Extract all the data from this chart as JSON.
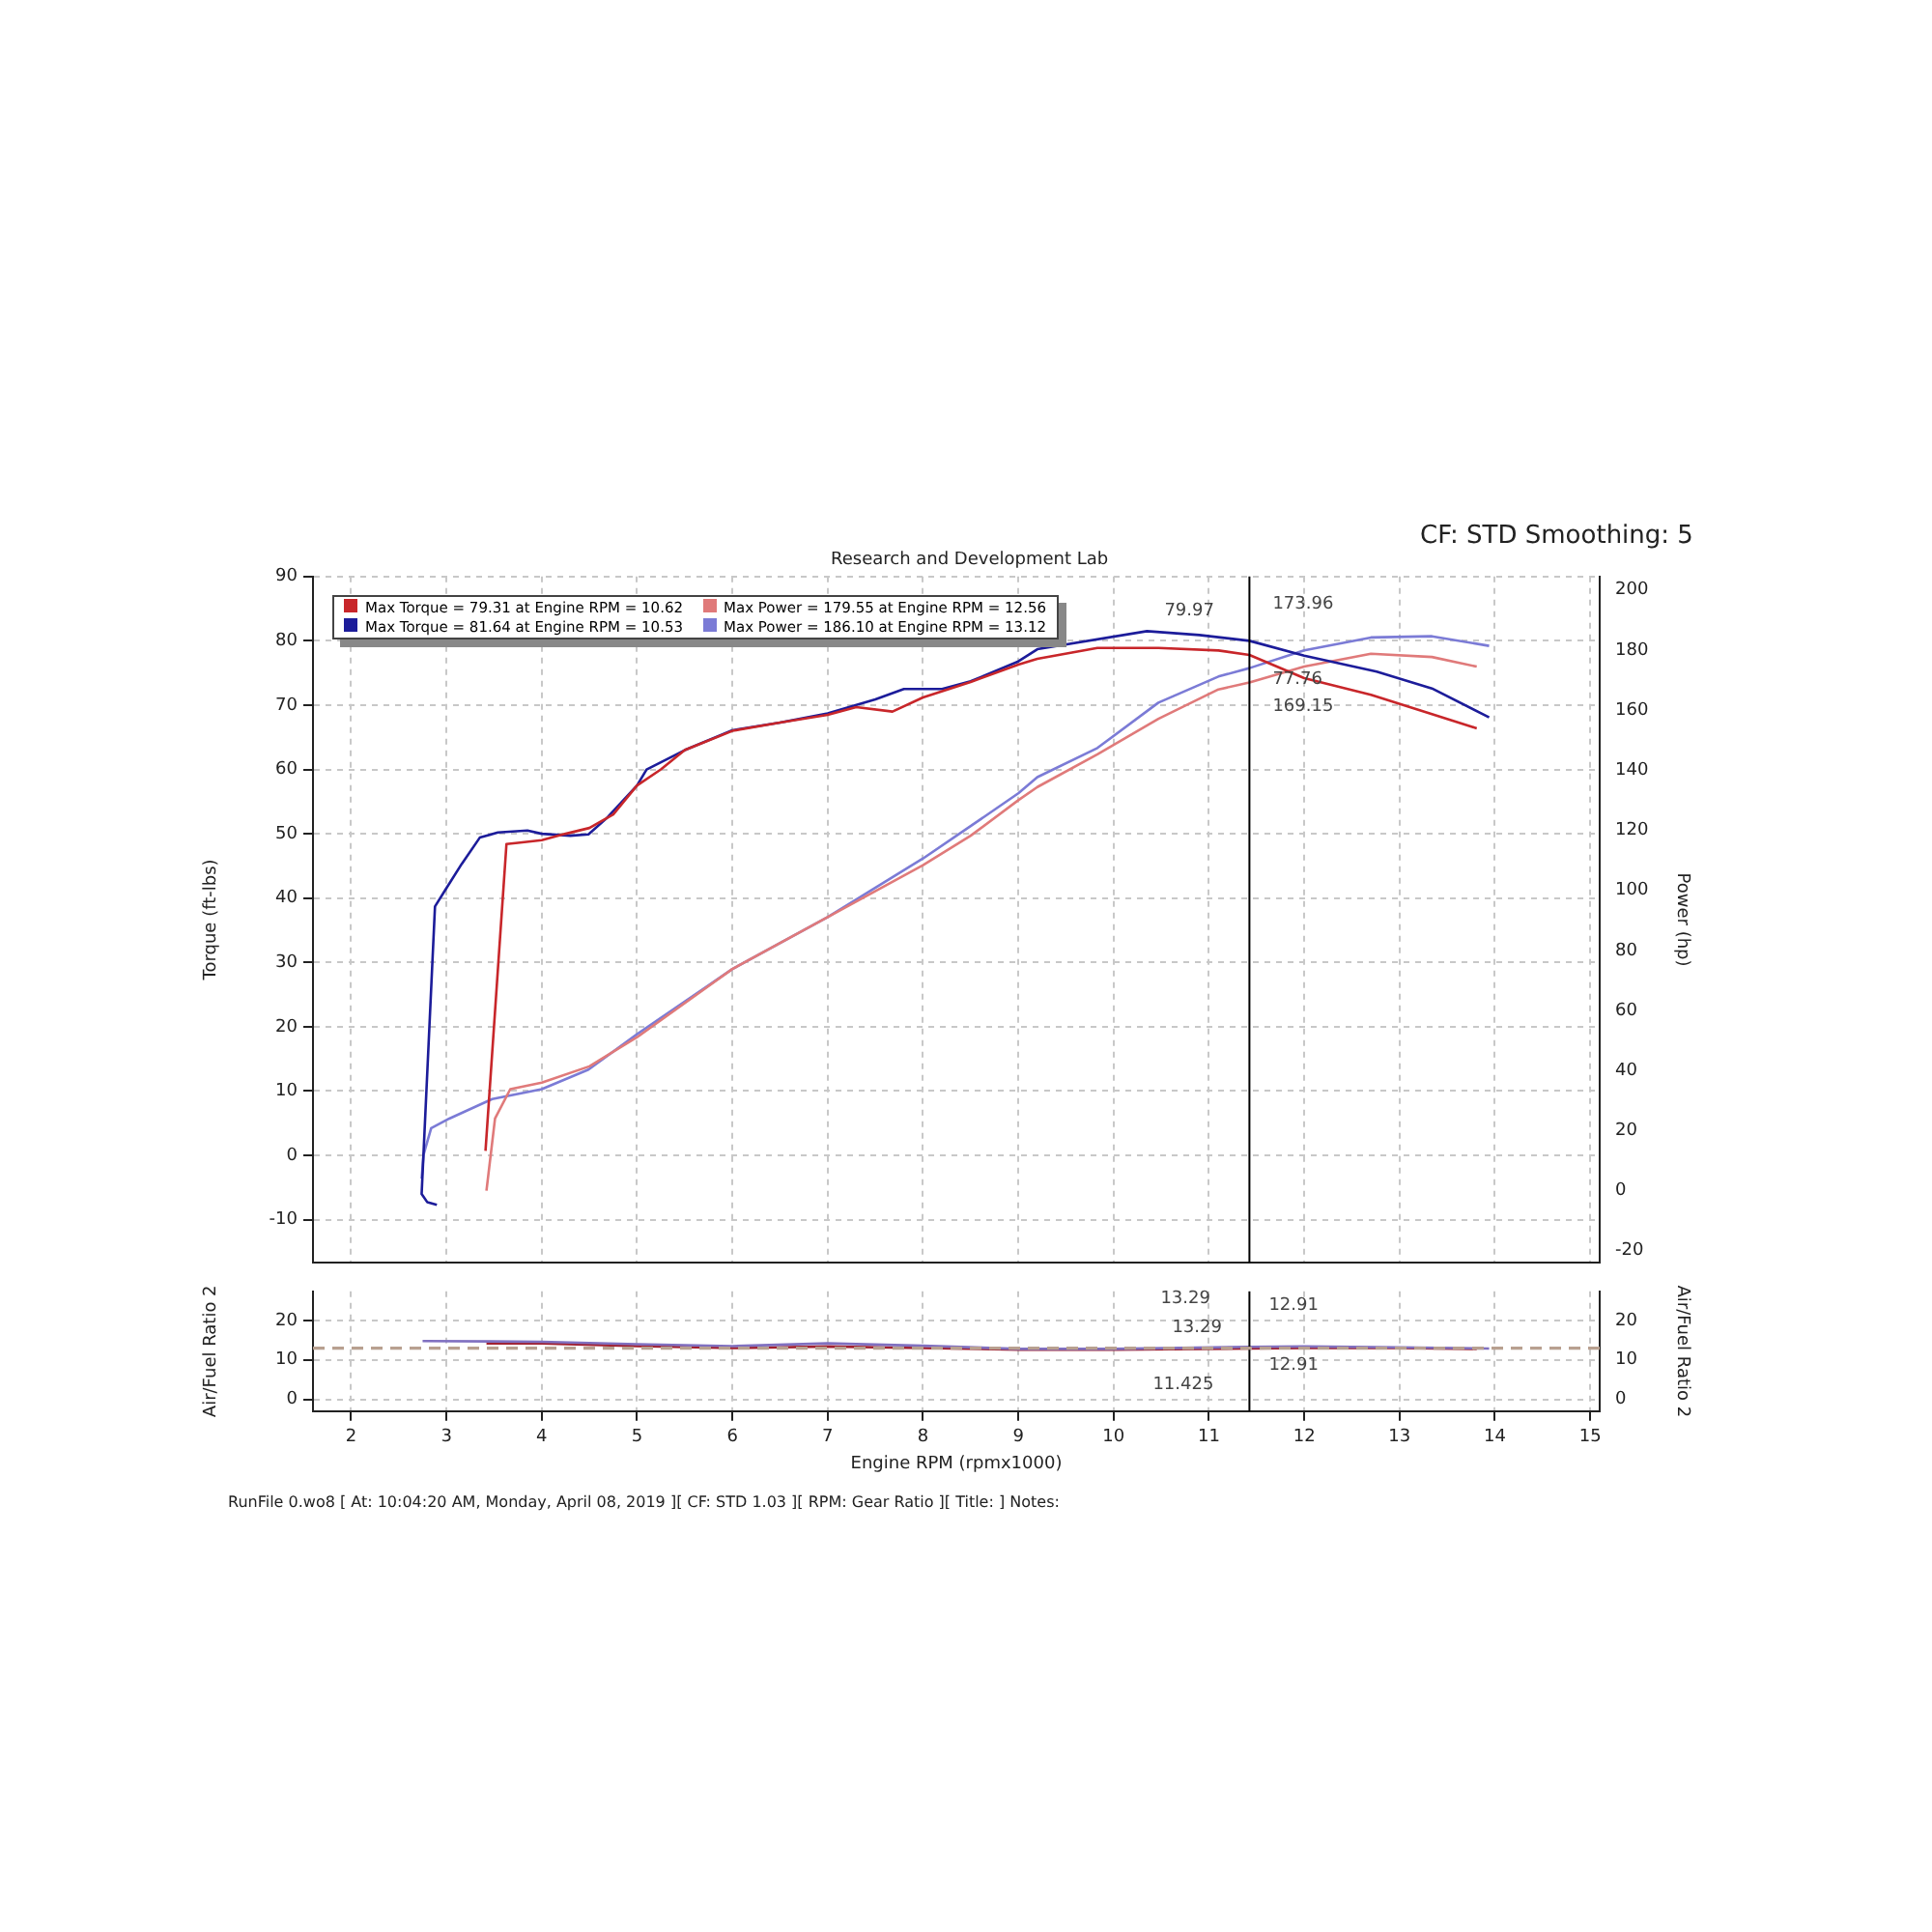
{
  "chart_data": [
    {
      "type": "line",
      "title": "Research and Development Lab",
      "subtitle": "CF: STD Smoothing: 5",
      "ylabel": "Torque (ft-lbs)",
      "y2label": "Power (hp)",
      "xlim": [
        1.6,
        15.1
      ],
      "xticks": [
        2,
        3,
        4,
        5,
        6,
        7,
        8,
        9,
        10,
        11,
        12,
        13,
        14,
        15
      ],
      "ylim": [
        -16.7,
        90
      ],
      "yticks": [
        -10,
        0,
        10,
        20,
        30,
        40,
        50,
        60,
        70,
        80,
        90
      ],
      "y2lim": [
        -24,
        204.5
      ],
      "y2ticks": [
        -20,
        0,
        20,
        40,
        60,
        80,
        100,
        120,
        140,
        160,
        180,
        200
      ],
      "tick_labels": "y",
      "grid": true,
      "legend": "top left",
      "marker": "none",
      "line_style": "solid",
      "series": [
        {
          "name": "Max Torque = 79.31 at Engine RPM = 10.62",
          "color": "#c8262a",
          "x": [
            3.41,
            3.63,
            3.75,
            4.0,
            4.25,
            4.5,
            4.75,
            5.0,
            5.25,
            5.5,
            6.0,
            6.5,
            7.0,
            7.3,
            7.68,
            8.0,
            8.5,
            9.0,
            9.2,
            9.83,
            10.47,
            11.1,
            11.425,
            12.0,
            12.7,
            13.34,
            13.81
          ],
          "values": [
            0.7,
            48.4,
            48.6,
            49,
            50,
            50.9,
            53,
            57.5,
            60,
            63,
            66,
            67.3,
            68.5,
            69.7,
            69,
            71.2,
            73.6,
            76.3,
            77.2,
            78.9,
            78.9,
            78.5,
            77.8,
            74.2,
            71.6,
            68.6,
            66.4
          ]
        },
        {
          "name": "Max Torque = 81.64 at Engine RPM = 10.53",
          "color": "#1c1c9a",
          "x": [
            2.9,
            2.8,
            2.74,
            2.88,
            2.99,
            3.16,
            3.35,
            3.54,
            3.85,
            4.0,
            4.3,
            4.49,
            4.68,
            5.0,
            5.1,
            5.5,
            6.0,
            6.5,
            7.0,
            7.5,
            7.8,
            8.2,
            8.5,
            9.0,
            9.2,
            10.35,
            10.9,
            11.425,
            12.0,
            12.76,
            13.34,
            13.94
          ],
          "values": [
            -7.7,
            -7.3,
            -6,
            38.7,
            41.3,
            45.3,
            49.4,
            50.2,
            50.5,
            50,
            49.7,
            49.9,
            52.4,
            57.5,
            60,
            63,
            66.1,
            67.3,
            68.7,
            70.9,
            72.5,
            72.5,
            73.7,
            76.8,
            78.7,
            81.5,
            80.9,
            80.0,
            77.7,
            75.2,
            72.6,
            68.1
          ]
        },
        {
          "name": "Max Power = 179.55 at Engine RPM = 12.56",
          "color": "#e07a7a",
          "axis": "y2",
          "x": [
            3.42,
            3.51,
            3.67,
            4.0,
            4.5,
            5.0,
            6.0,
            7.0,
            8.0,
            8.5,
            9.0,
            9.2,
            9.83,
            10.47,
            11.1,
            11.425,
            12.0,
            12.7,
            13.34,
            13.81
          ],
          "values": [
            0,
            24,
            33.8,
            36,
            41.4,
            51.1,
            73.8,
            91.1,
            108.4,
            118.2,
            130,
            134.4,
            145.3,
            157.1,
            166.9,
            169.2,
            174.5,
            178.8,
            177.7,
            174.5
          ]
        },
        {
          "name": "Max Power = 186.10 at Engine RPM = 13.12",
          "color": "#7b7bd6",
          "axis": "y2",
          "x": [
            2.74,
            2.76,
            2.84,
            3.03,
            3.48,
            4.0,
            4.49,
            5.0,
            6.0,
            7.0,
            8.0,
            8.5,
            9.0,
            9.2,
            9.83,
            10.47,
            11.1,
            11.425,
            12.0,
            12.7,
            13.34,
            13.94
          ],
          "values": [
            4,
            12,
            20.8,
            24,
            30.5,
            33.8,
            40.3,
            52.1,
            73.8,
            91.1,
            110.6,
            121.4,
            132.3,
            137.7,
            147.4,
            162.5,
            171.2,
            174,
            179.9,
            184.2,
            184.6,
            181.4
          ]
        }
      ],
      "ref_lines": [
        {
          "axis": "x",
          "value": 11.425,
          "color": "#000000"
        }
      ],
      "annotations": [
        "79.97",
        "77.76",
        "173.96",
        "169.15"
      ]
    },
    {
      "type": "line",
      "xlabel": "Engine RPM (rpmx1000)",
      "ylabel": "Air/Fuel Ratio 2",
      "y2label": "Air/Fuel Ratio 2",
      "xlim": [
        1.6,
        15.1
      ],
      "xticks": [
        2,
        3,
        4,
        5,
        6,
        7,
        8,
        9,
        10,
        11,
        12,
        13,
        14,
        15
      ],
      "ylim": [
        -3,
        27.4
      ],
      "yticks": [
        0,
        10,
        20
      ],
      "y2lim": [
        -3,
        27.4
      ],
      "y2ticks": [
        0,
        10,
        20
      ],
      "grid": true,
      "marker": "none",
      "line_style": "solid",
      "series": [
        {
          "color": "#8070c0",
          "x": [
            2.75,
            4,
            5,
            6,
            7,
            8,
            9,
            10,
            11.425,
            12,
            13,
            13.94
          ],
          "values": [
            14.8,
            14.6,
            14,
            13.5,
            14.2,
            13.6,
            12.8,
            12.8,
            13.3,
            13.4,
            13.2,
            12.9
          ]
        },
        {
          "color": "#a02030",
          "x": [
            3.42,
            4,
            5,
            6,
            7,
            8,
            9,
            10,
            11.425,
            12,
            13,
            13.81
          ],
          "values": [
            14.2,
            14.2,
            13.5,
            13,
            13.4,
            13,
            12.6,
            12.6,
            12.9,
            13,
            13,
            12.8
          ]
        }
      ],
      "ref_lines": [
        {
          "axis": "x",
          "value": 11.425,
          "color": "#000000"
        },
        {
          "axis": "y",
          "value": 13,
          "color": "#b8a090",
          "line_style": "dashed"
        }
      ],
      "annotations": [
        "13.29",
        "13.29",
        "12.91",
        "12.91",
        "11.425",
        "RunFile 0.wo8 [ At: 10:04:20 AM, Monday, April 08, 2019 ][ CF: STD 1.03 ][ RPM: Gear Ratio ][ Title: ]  Notes:"
      ]
    }
  ]
}
